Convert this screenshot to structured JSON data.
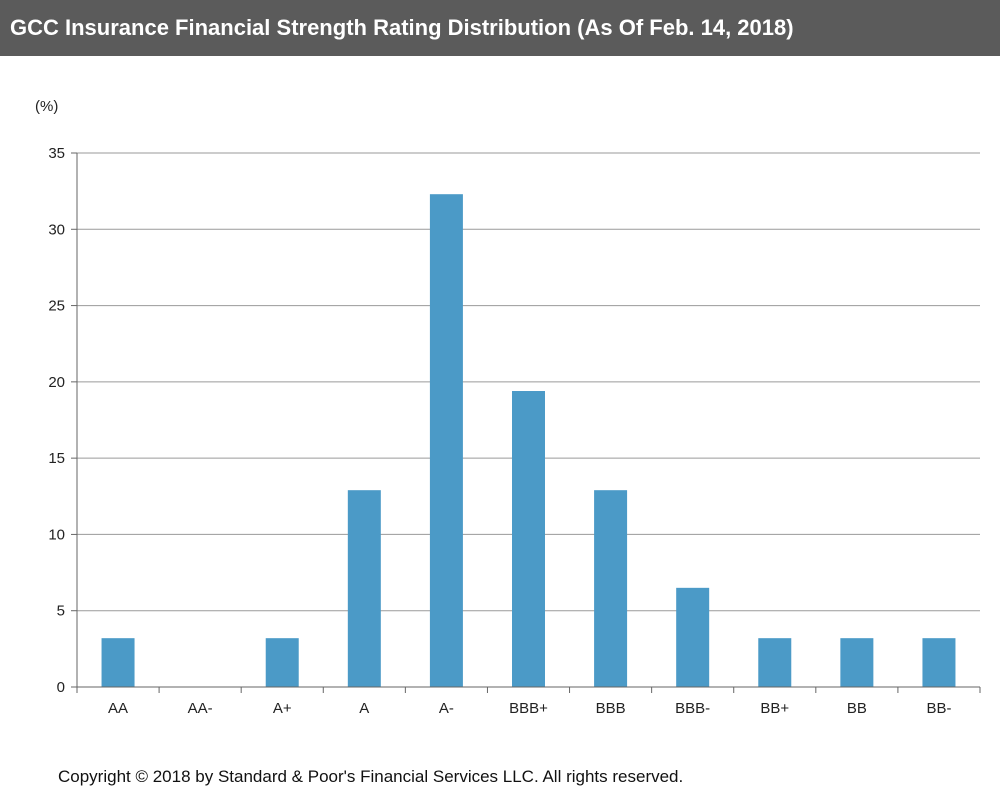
{
  "header": {
    "title": "GCC Insurance Financial Strength Rating Distribution  (As Of Feb. 14, 2018)"
  },
  "footer": {
    "copyright": "Copyright © 2018 by Standard & Poor's Financial Services LLC. All rights reserved."
  },
  "colors": {
    "bar": "#4b9ac7",
    "title_bg": "#5b5b5b",
    "gridline": "#9a9a9a"
  },
  "chart_data": {
    "type": "bar",
    "title": "GCC Insurance Financial Strength Rating Distribution  (As Of Feb. 14, 2018)",
    "unit_label": "(%)",
    "xlabel": "",
    "ylabel": "",
    "categories": [
      "AA",
      "AA-",
      "A+",
      "A",
      "A-",
      "BBB+",
      "BBB",
      "BBB-",
      "BB+",
      "BB",
      "BB-"
    ],
    "values": [
      3.2,
      0,
      3.2,
      12.9,
      32.3,
      19.4,
      12.9,
      6.5,
      3.2,
      3.2,
      3.2
    ],
    "ylim": [
      0,
      35
    ],
    "yticks": [
      0,
      5,
      10,
      15,
      20,
      25,
      30,
      35
    ],
    "grid": true,
    "legend": "none"
  }
}
